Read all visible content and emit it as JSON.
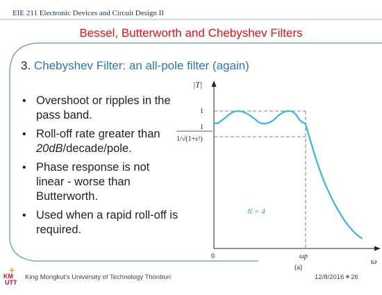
{
  "header": {
    "course": "EIE 211 Electronic Devices and Circuit Design II",
    "title": "Bessel, Butterworth and Chebyshev Filters"
  },
  "subtitle": {
    "number": "3.",
    "text": "Chebyshev Filter: an all-pole filter (again)"
  },
  "bullets": [
    {
      "text": "Overshoot or ripples in the pass band."
    },
    {
      "pre": "Roll-off rate greater than ",
      "em": "20dB",
      "post": "/decade/pole."
    },
    {
      "text": "Phase response is not linear - worse than Butterworth."
    },
    {
      "text": "Used when a rapid roll-off is required."
    }
  ],
  "chart_data": {
    "type": "line",
    "ylabel": "|T|",
    "xlabel": "ω",
    "yticks": [
      "1",
      "1/√(1+ε²)"
    ],
    "xticks": [
      "0",
      "ωp"
    ],
    "annotation": "N = 4",
    "caption": "(a)",
    "series": [
      {
        "x": [
          0,
          0.05,
          0.12,
          0.2,
          0.27,
          0.35,
          0.43,
          0.5,
          0.57,
          0.64,
          0.71,
          0.77,
          0.83,
          0.88,
          0.91,
          0.93,
          0.96,
          1.0,
          1.05,
          1.1,
          1.15,
          1.2,
          1.26,
          1.32,
          1.38,
          1.44,
          1.5,
          1.56,
          1.62
        ],
        "y": [
          0.91,
          0.915,
          0.95,
          0.99,
          1.0,
          0.985,
          0.95,
          0.915,
          0.91,
          0.93,
          0.97,
          0.995,
          1.0,
          0.985,
          0.96,
          0.94,
          0.92,
          0.9,
          0.79,
          0.68,
          0.58,
          0.49,
          0.4,
          0.32,
          0.25,
          0.19,
          0.14,
          0.1,
          0.07
        ]
      }
    ]
  },
  "footer": {
    "university": "King Mongkut's University of Technology Thonburi",
    "date": "12/8/2016",
    "page": "26"
  },
  "colors": {
    "accent_blue": "#2e75b6",
    "frame_blue": "#7aa6c2",
    "title_red": "#e01414",
    "curve": "#3fb8d8"
  }
}
